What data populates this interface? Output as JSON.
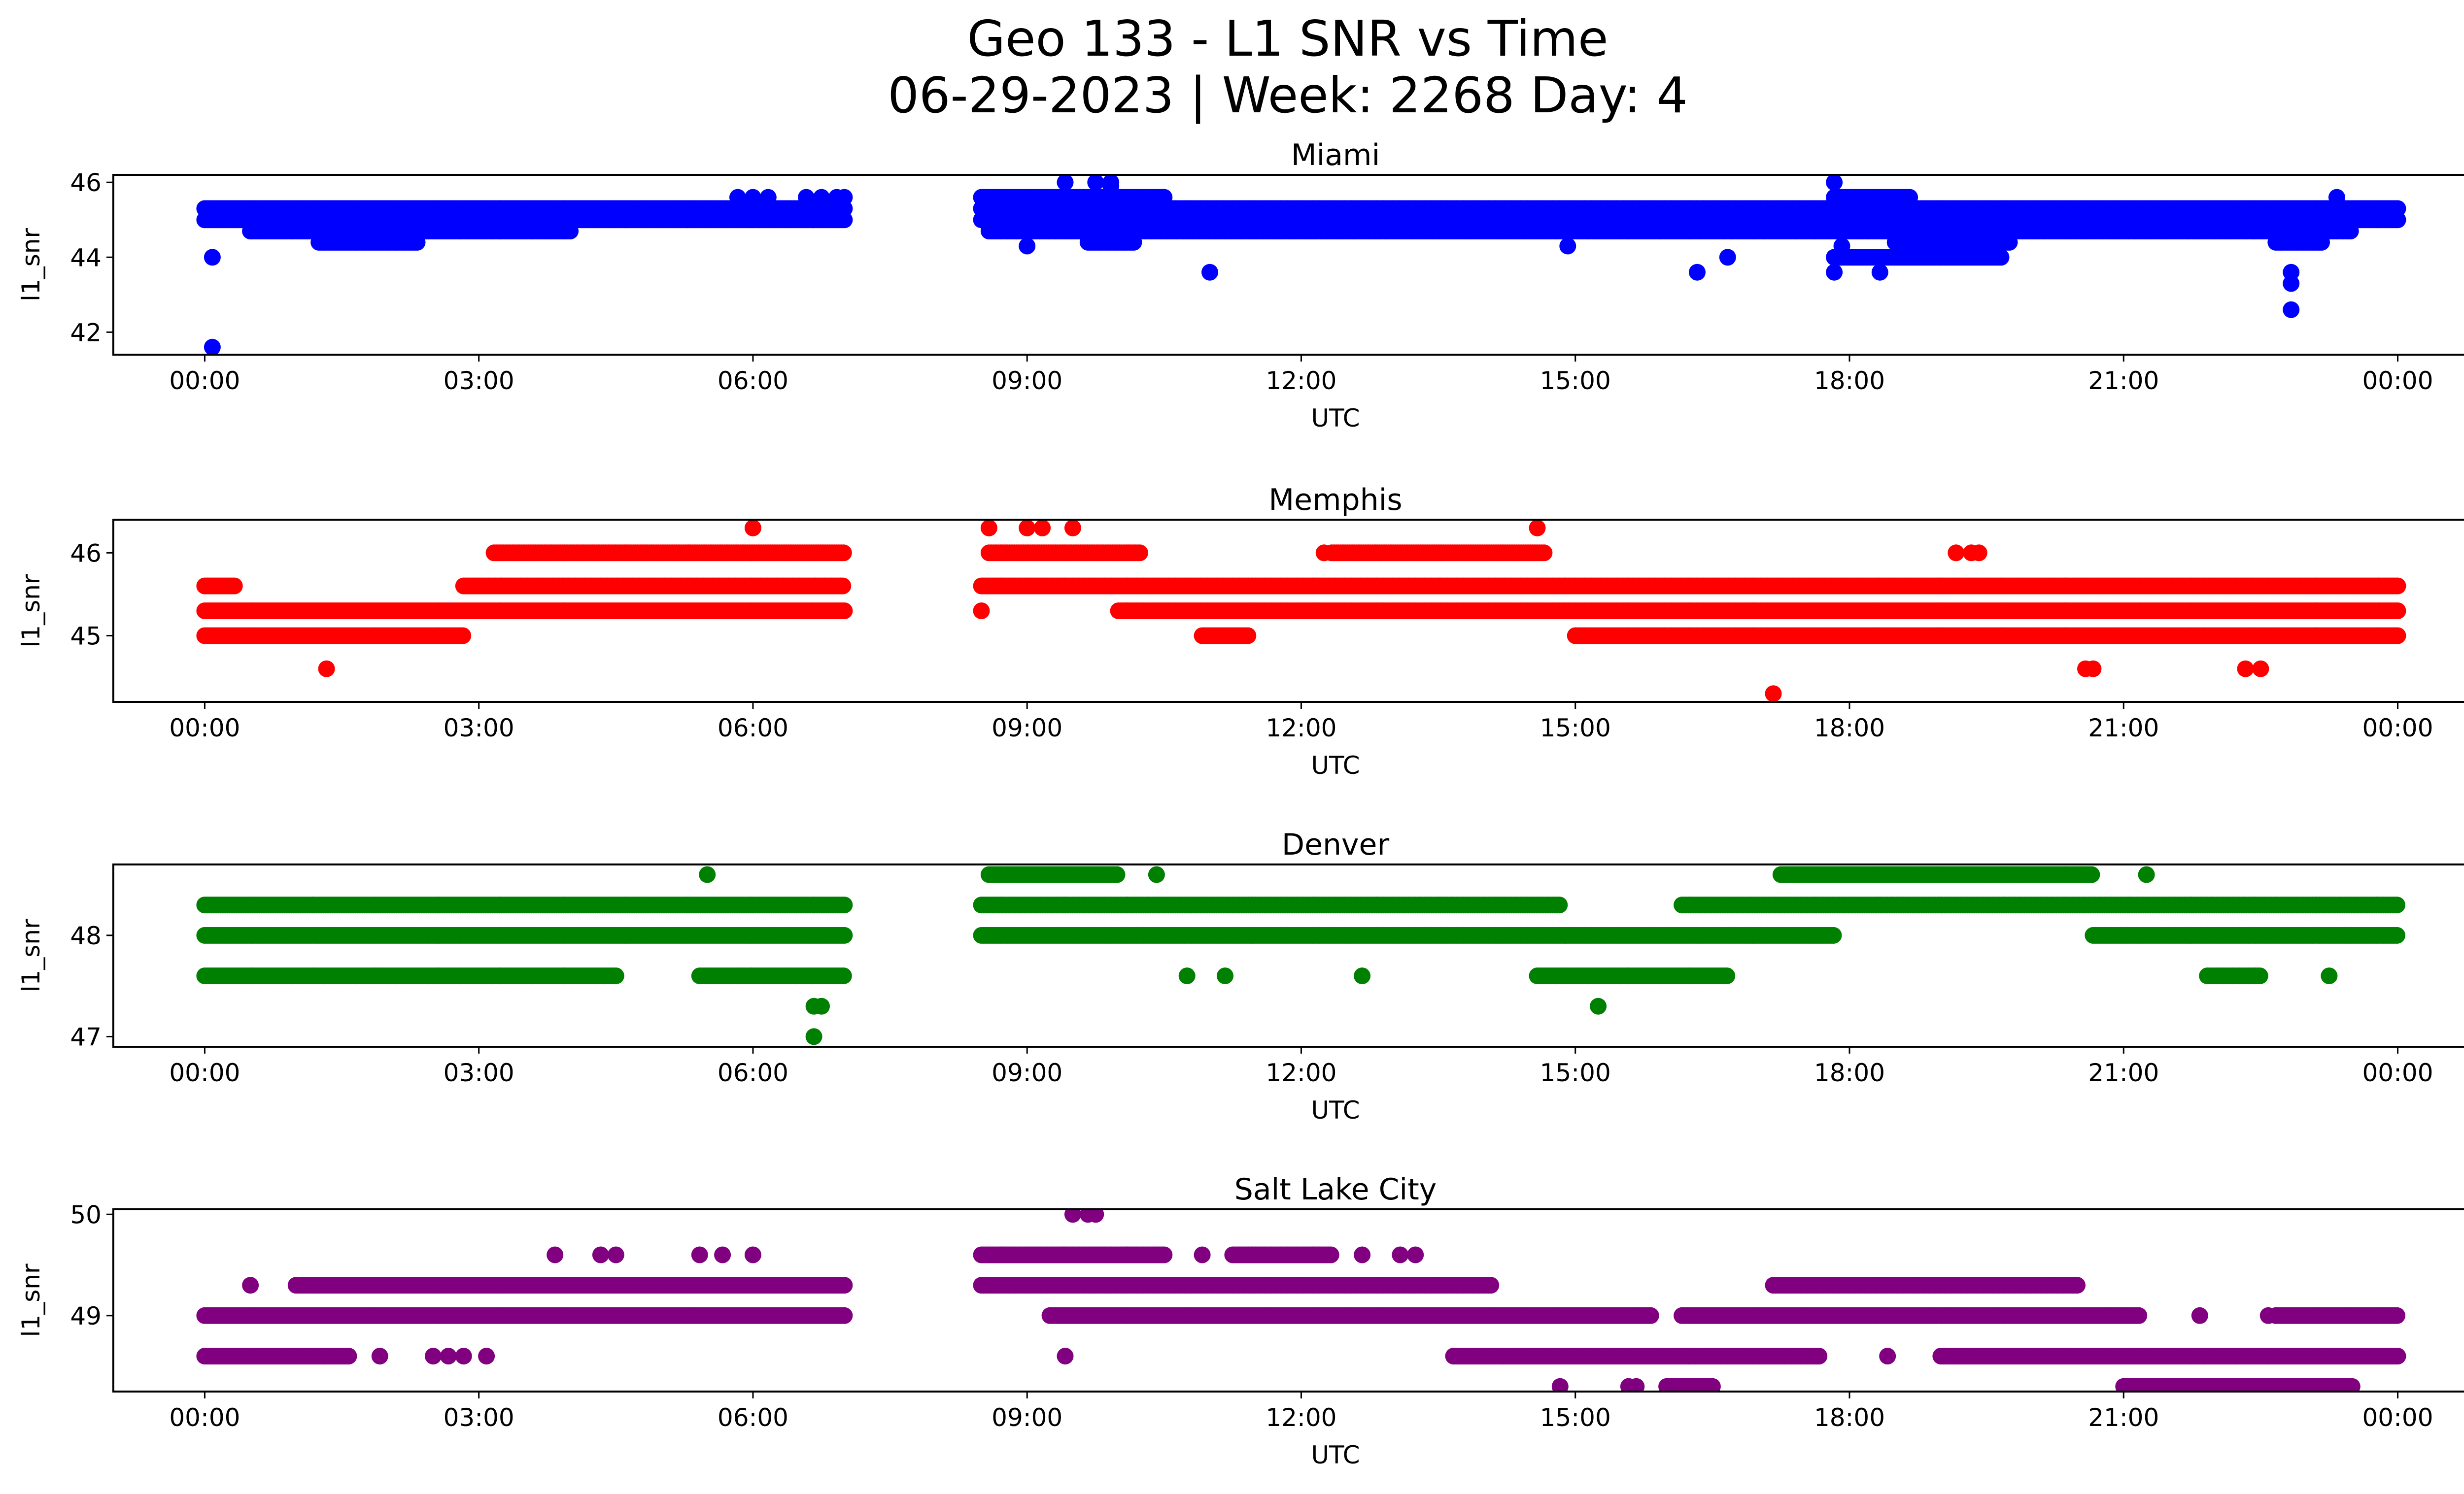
{
  "figure": {
    "title_line1": "Geo 133 - L1 SNR vs Time",
    "title_line2": "06-29-2023 | Week: 2268 Day: 4"
  },
  "chart_data": [
    {
      "type": "scatter",
      "title": "Miami",
      "xlabel": "UTC",
      "ylabel": "l1_snr",
      "color": "#0000ff",
      "xlim": [
        "23:00",
        "01:45"
      ],
      "ylim": [
        41.4,
        46.2
      ],
      "x_ticks": [
        "00:00",
        "03:00",
        "06:00",
        "09:00",
        "12:00",
        "15:00",
        "18:00",
        "21:00",
        "00:00"
      ],
      "y_ticks": [
        42,
        44,
        46
      ],
      "bands": [
        {
          "y": 45.3,
          "segments": [
            [
              "00:00",
              "07:00"
            ],
            [
              "08:30",
              "24:00"
            ]
          ]
        },
        {
          "y": 45.0,
          "segments": [
            [
              "00:00",
              "07:00"
            ],
            [
              "08:30",
              "24:00"
            ]
          ]
        },
        {
          "y": 44.7,
          "segments": [
            [
              "00:30",
              "04:00"
            ],
            [
              "08:35",
              "23:30"
            ]
          ]
        },
        {
          "y": 44.4,
          "segments": [
            [
              "01:15",
              "02:20"
            ],
            [
              "09:40",
              "10:10"
            ],
            [
              "18:30",
              "19:45"
            ],
            [
              "22:40",
              "23:10"
            ]
          ]
        },
        {
          "y": 44.0,
          "segments": [
            [
              "17:50",
              "19:40"
            ]
          ]
        },
        {
          "y": 45.6,
          "segments": [
            [
              "08:30",
              "10:30"
            ],
            [
              "17:50",
              "18:40"
            ]
          ]
        }
      ],
      "points": [
        {
          "x": "00:05",
          "y": 41.6
        },
        {
          "x": "00:05",
          "y": 44.0
        },
        {
          "x": "05:50",
          "y": 45.6
        },
        {
          "x": "06:00",
          "y": 45.6
        },
        {
          "x": "06:10",
          "y": 45.6
        },
        {
          "x": "06:35",
          "y": 45.6
        },
        {
          "x": "06:45",
          "y": 45.6
        },
        {
          "x": "06:55",
          "y": 45.6
        },
        {
          "x": "07:00",
          "y": 45.6
        },
        {
          "x": "09:00",
          "y": 44.3
        },
        {
          "x": "09:25",
          "y": 46.0
        },
        {
          "x": "09:45",
          "y": 46.0
        },
        {
          "x": "09:55",
          "y": 46.0
        },
        {
          "x": "09:55",
          "y": 45.9
        },
        {
          "x": "11:00",
          "y": 43.6
        },
        {
          "x": "14:55",
          "y": 44.3
        },
        {
          "x": "16:20",
          "y": 43.6
        },
        {
          "x": "16:40",
          "y": 44.0
        },
        {
          "x": "17:50",
          "y": 46.0
        },
        {
          "x": "17:50",
          "y": 43.6
        },
        {
          "x": "17:55",
          "y": 44.3
        },
        {
          "x": "18:20",
          "y": 43.6
        },
        {
          "x": "22:50",
          "y": 43.6
        },
        {
          "x": "22:50",
          "y": 43.3
        },
        {
          "x": "22:50",
          "y": 42.6
        },
        {
          "x": "23:20",
          "y": 45.6
        }
      ]
    },
    {
      "type": "scatter",
      "title": "Memphis",
      "xlabel": "UTC",
      "ylabel": "l1_snr",
      "color": "#ff0000",
      "xlim": [
        "23:00",
        "01:45"
      ],
      "ylim": [
        44.2,
        46.4
      ],
      "x_ticks": [
        "00:00",
        "03:00",
        "06:00",
        "09:00",
        "12:00",
        "15:00",
        "18:00",
        "21:00",
        "00:00"
      ],
      "y_ticks": [
        45,
        46
      ],
      "bands": [
        {
          "y": 45.6,
          "segments": [
            [
              "00:00",
              "00:20"
            ],
            [
              "02:50",
              "07:00"
            ],
            [
              "08:30",
              "24:00"
            ]
          ]
        },
        {
          "y": 45.3,
          "segments": [
            [
              "00:00",
              "07:00"
            ],
            [
              "10:00",
              "24:00"
            ]
          ]
        },
        {
          "y": 45.0,
          "segments": [
            [
              "00:00",
              "02:50"
            ],
            [
              "10:55",
              "11:25"
            ],
            [
              "15:00",
              "24:00"
            ]
          ]
        },
        {
          "y": 46.0,
          "segments": [
            [
              "03:10",
              "07:00"
            ],
            [
              "08:35",
              "10:15"
            ],
            [
              "12:20",
              "14:40"
            ]
          ]
        }
      ],
      "points": [
        {
          "x": "01:20",
          "y": 44.6
        },
        {
          "x": "06:00",
          "y": 46.3
        },
        {
          "x": "08:35",
          "y": 46.3
        },
        {
          "x": "09:00",
          "y": 46.3
        },
        {
          "x": "09:10",
          "y": 46.3
        },
        {
          "x": "09:30",
          "y": 46.3
        },
        {
          "x": "08:30",
          "y": 45.3
        },
        {
          "x": "14:35",
          "y": 46.3
        },
        {
          "x": "12:15",
          "y": 46.0
        },
        {
          "x": "17:10",
          "y": 44.3
        },
        {
          "x": "19:10",
          "y": 46.0
        },
        {
          "x": "19:20",
          "y": 46.0
        },
        {
          "x": "19:25",
          "y": 46.0
        },
        {
          "x": "20:35",
          "y": 44.6
        },
        {
          "x": "20:40",
          "y": 44.6
        },
        {
          "x": "22:20",
          "y": 44.6
        },
        {
          "x": "22:30",
          "y": 44.6
        }
      ]
    },
    {
      "type": "scatter",
      "title": "Denver",
      "xlabel": "UTC",
      "ylabel": "l1_snr",
      "color": "#008000",
      "xlim": [
        "23:00",
        "01:45"
      ],
      "ylim": [
        46.9,
        48.7
      ],
      "x_ticks": [
        "00:00",
        "03:00",
        "06:00",
        "09:00",
        "12:00",
        "15:00",
        "18:00",
        "21:00",
        "00:00"
      ],
      "y_ticks": [
        47,
        48
      ],
      "bands": [
        {
          "y": 48.3,
          "segments": [
            [
              "00:00",
              "07:00"
            ],
            [
              "08:30",
              "14:50"
            ],
            [
              "16:10",
              "24:00"
            ]
          ]
        },
        {
          "y": 48.0,
          "segments": [
            [
              "00:00",
              "07:00"
            ],
            [
              "08:30",
              "17:50"
            ],
            [
              "20:40",
              "24:00"
            ]
          ]
        },
        {
          "y": 47.6,
          "segments": [
            [
              "00:00",
              "04:30"
            ],
            [
              "05:25",
              "07:00"
            ],
            [
              "14:35",
              "16:40"
            ],
            [
              "21:55",
              "22:30"
            ]
          ]
        },
        {
          "y": 48.6,
          "segments": [
            [
              "08:35",
              "10:00"
            ],
            [
              "17:15",
              "20:40"
            ]
          ]
        }
      ],
      "points": [
        {
          "x": "05:30",
          "y": 48.6
        },
        {
          "x": "06:40",
          "y": 47.3
        },
        {
          "x": "06:45",
          "y": 47.3
        },
        {
          "x": "06:40",
          "y": 47.0
        },
        {
          "x": "10:25",
          "y": 48.6
        },
        {
          "x": "15:15",
          "y": 47.3
        },
        {
          "x": "21:15",
          "y": 48.6
        },
        {
          "x": "10:45",
          "y": 47.6
        },
        {
          "x": "11:10",
          "y": 47.6
        },
        {
          "x": "12:40",
          "y": 47.6
        },
        {
          "x": "23:15",
          "y": 47.6
        }
      ]
    },
    {
      "type": "scatter",
      "title": "Salt Lake City",
      "xlabel": "UTC",
      "ylabel": "l1_snr",
      "color": "#800080",
      "xlim": [
        "23:00",
        "01:45"
      ],
      "ylim": [
        48.25,
        50.05
      ],
      "x_ticks": [
        "00:00",
        "03:00",
        "06:00",
        "09:00",
        "12:00",
        "15:00",
        "18:00",
        "21:00",
        "00:00"
      ],
      "y_ticks": [
        49,
        50
      ],
      "bands": [
        {
          "y": 49.0,
          "segments": [
            [
              "00:00",
              "07:00"
            ],
            [
              "09:15",
              "15:50"
            ],
            [
              "16:10",
              "21:10"
            ],
            [
              "22:40",
              "24:00"
            ]
          ]
        },
        {
          "y": 48.6,
          "segments": [
            [
              "00:00",
              "01:35"
            ],
            [
              "13:40",
              "17:40"
            ],
            [
              "19:00",
              "24:00"
            ]
          ]
        },
        {
          "y": 49.3,
          "segments": [
            [
              "01:00",
              "07:00"
            ],
            [
              "08:30",
              "14:05"
            ],
            [
              "17:10",
              "20:30"
            ]
          ]
        },
        {
          "y": 49.6,
          "segments": [
            [
              "08:30",
              "10:30"
            ],
            [
              "11:15",
              "12:20"
            ]
          ]
        },
        {
          "y": 48.3,
          "segments": [
            [
              "16:00",
              "16:30"
            ],
            [
              "21:00",
              "23:30"
            ]
          ]
        }
      ],
      "points": [
        {
          "x": "00:30",
          "y": 49.3
        },
        {
          "x": "01:55",
          "y": 48.6
        },
        {
          "x": "02:30",
          "y": 48.6
        },
        {
          "x": "02:40",
          "y": 48.6
        },
        {
          "x": "02:50",
          "y": 48.6
        },
        {
          "x": "03:05",
          "y": 48.6
        },
        {
          "x": "03:50",
          "y": 49.6
        },
        {
          "x": "04:20",
          "y": 49.6
        },
        {
          "x": "04:30",
          "y": 49.6
        },
        {
          "x": "05:25",
          "y": 49.6
        },
        {
          "x": "05:40",
          "y": 49.6
        },
        {
          "x": "06:00",
          "y": 49.6
        },
        {
          "x": "09:25",
          "y": 48.6
        },
        {
          "x": "09:30",
          "y": 50.0
        },
        {
          "x": "09:40",
          "y": 50.0
        },
        {
          "x": "09:45",
          "y": 50.0
        },
        {
          "x": "10:55",
          "y": 49.6
        },
        {
          "x": "12:40",
          "y": 49.6
        },
        {
          "x": "13:05",
          "y": 49.6
        },
        {
          "x": "13:15",
          "y": 49.6
        },
        {
          "x": "14:50",
          "y": 48.3
        },
        {
          "x": "15:35",
          "y": 48.3
        },
        {
          "x": "15:40",
          "y": 48.3
        },
        {
          "x": "18:25",
          "y": 48.6
        },
        {
          "x": "21:50",
          "y": 49.0
        },
        {
          "x": "22:35",
          "y": 49.0
        }
      ]
    }
  ]
}
